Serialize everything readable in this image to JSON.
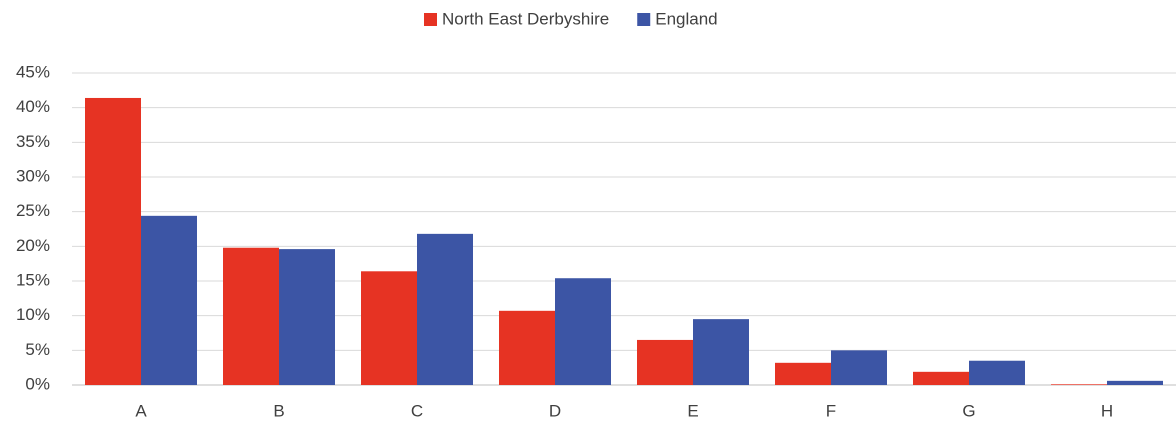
{
  "chart_data": {
    "type": "bar",
    "categories": [
      "A",
      "B",
      "C",
      "D",
      "E",
      "F",
      "G",
      "H"
    ],
    "series": [
      {
        "name": "North East Derbyshire",
        "color": "#e63323",
        "values": [
          41.4,
          19.8,
          16.4,
          10.7,
          6.5,
          3.2,
          1.9,
          0.1
        ]
      },
      {
        "name": "England",
        "color": "#3c55a5",
        "values": [
          24.4,
          19.6,
          21.8,
          15.4,
          9.5,
          5.0,
          3.5,
          0.6
        ]
      }
    ],
    "ylim": [
      0,
      45
    ],
    "yticks": [
      {
        "value": 0,
        "label": "0%"
      },
      {
        "value": 5,
        "label": "5%"
      },
      {
        "value": 10,
        "label": "10%"
      },
      {
        "value": 15,
        "label": "15%"
      },
      {
        "value": 20,
        "label": "20%"
      },
      {
        "value": 25,
        "label": "25%"
      },
      {
        "value": 30,
        "label": "30%"
      },
      {
        "value": 35,
        "label": "35%"
      },
      {
        "value": 40,
        "label": "40%"
      },
      {
        "value": 45,
        "label": "45%"
      }
    ],
    "grid": true,
    "legend": "top"
  }
}
